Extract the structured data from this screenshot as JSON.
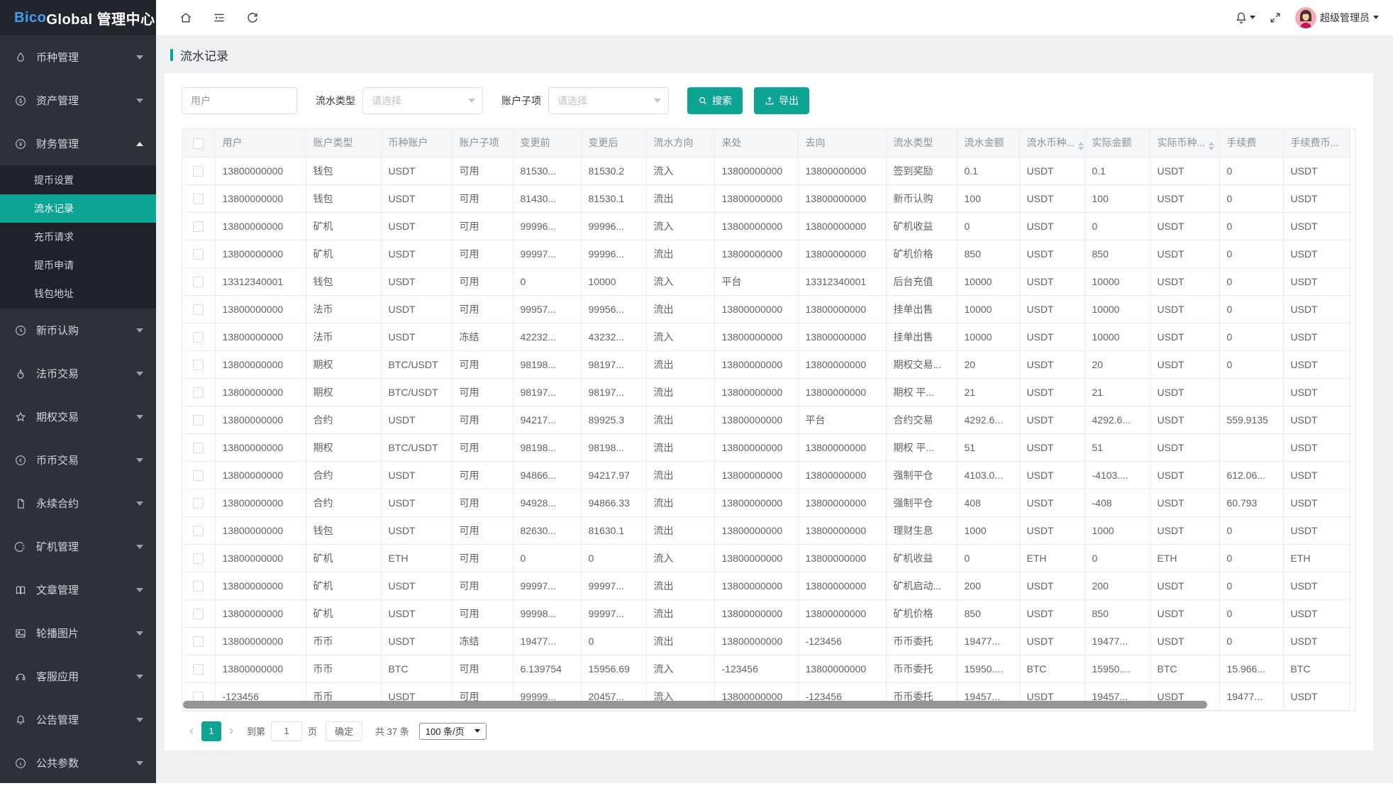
{
  "brand": {
    "highlight": "Bico",
    "rest": " Global 管理中心"
  },
  "topbar": {
    "user": "超级管理员"
  },
  "sidebar": {
    "items": [
      {
        "icon": "droplet",
        "label": "币种管理"
      },
      {
        "icon": "dollar",
        "label": "资产管理"
      },
      {
        "icon": "yen",
        "label": "财务管理",
        "expanded": true,
        "children": [
          {
            "label": "提币设置"
          },
          {
            "label": "流水记录",
            "active": true
          },
          {
            "label": "充币请求"
          },
          {
            "label": "提币申请"
          },
          {
            "label": "钱包地址"
          }
        ]
      },
      {
        "icon": "clock",
        "label": "新币认购"
      },
      {
        "icon": "fire",
        "label": "法币交易"
      },
      {
        "icon": "star",
        "label": "期权交易"
      },
      {
        "icon": "exchange",
        "label": "币币交易"
      },
      {
        "icon": "document",
        "label": "永续合约"
      },
      {
        "icon": "miner",
        "label": "矿机管理"
      },
      {
        "icon": "book",
        "label": "文章管理"
      },
      {
        "icon": "image",
        "label": "轮播图片"
      },
      {
        "icon": "headset",
        "label": "客服应用"
      },
      {
        "icon": "bell",
        "label": "公告管理"
      },
      {
        "icon": "info",
        "label": "公共参数"
      }
    ]
  },
  "page": {
    "title": "流水记录"
  },
  "filters": {
    "user_placeholder": "用户",
    "type_label": "流水类型",
    "type_placeholder": "请选择",
    "sub_label": "账户子项",
    "sub_placeholder": "请选择",
    "search_label": "搜索",
    "export_label": "导出"
  },
  "table": {
    "headers": [
      {
        "label": "用户"
      },
      {
        "label": "账户类型"
      },
      {
        "label": "币种账户"
      },
      {
        "label": "账户子项"
      },
      {
        "label": "变更前"
      },
      {
        "label": "变更后"
      },
      {
        "label": "流水方向"
      },
      {
        "label": "来处"
      },
      {
        "label": "去向"
      },
      {
        "label": "流水类型"
      },
      {
        "label": "流水金额"
      },
      {
        "label": "流水币种...",
        "sortable": true
      },
      {
        "label": "实际金额"
      },
      {
        "label": "实际币种...",
        "sortable": true
      },
      {
        "label": "手续费"
      },
      {
        "label": "手续费币..."
      }
    ],
    "rows": [
      [
        "13800000000",
        "钱包",
        "USDT",
        "可用",
        "81530...",
        "81530.2",
        "流入",
        "13800000000",
        "13800000000",
        "签到奖励",
        "0.1",
        "USDT",
        "0.1",
        "USDT",
        "0",
        "USDT"
      ],
      [
        "13800000000",
        "钱包",
        "USDT",
        "可用",
        "81430...",
        "81530.1",
        "流出",
        "13800000000",
        "13800000000",
        "新币认购",
        "100",
        "USDT",
        "100",
        "USDT",
        "0",
        "USDT"
      ],
      [
        "13800000000",
        "矿机",
        "USDT",
        "可用",
        "99996...",
        "99996...",
        "流入",
        "13800000000",
        "13800000000",
        "矿机收益",
        "0",
        "USDT",
        "0",
        "USDT",
        "0",
        "USDT"
      ],
      [
        "13800000000",
        "矿机",
        "USDT",
        "可用",
        "99997...",
        "99996...",
        "流出",
        "13800000000",
        "13800000000",
        "矿机价格",
        "850",
        "USDT",
        "850",
        "USDT",
        "0",
        "USDT"
      ],
      [
        "13312340001",
        "钱包",
        "USDT",
        "可用",
        "0",
        "10000",
        "流入",
        "平台",
        "13312340001",
        "后台充值",
        "10000",
        "USDT",
        "10000",
        "USDT",
        "0",
        "USDT"
      ],
      [
        "13800000000",
        "法币",
        "USDT",
        "可用",
        "99957...",
        "99956...",
        "流出",
        "13800000000",
        "13800000000",
        "挂单出售",
        "10000",
        "USDT",
        "10000",
        "USDT",
        "0",
        "USDT"
      ],
      [
        "13800000000",
        "法币",
        "USDT",
        "冻结",
        "42232...",
        "43232...",
        "流入",
        "13800000000",
        "13800000000",
        "挂单出售",
        "10000",
        "USDT",
        "10000",
        "USDT",
        "0",
        "USDT"
      ],
      [
        "13800000000",
        "期权",
        "BTC/USDT",
        "可用",
        "98198...",
        "98197...",
        "流出",
        "13800000000",
        "13800000000",
        "期权交易...",
        "20",
        "USDT",
        "20",
        "USDT",
        "0",
        "USDT"
      ],
      [
        "13800000000",
        "期权",
        "BTC/USDT",
        "可用",
        "98197...",
        "98197...",
        "流出",
        "13800000000",
        "13800000000",
        "期权 平...",
        "21",
        "USDT",
        "21",
        "USDT",
        "",
        "USDT"
      ],
      [
        "13800000000",
        "合约",
        "USDT",
        "可用",
        "94217...",
        "89925.3",
        "流出",
        "13800000000",
        "平台",
        "合约交易",
        "4292.6...",
        "USDT",
        "4292.6...",
        "USDT",
        "559.9135",
        "USDT"
      ],
      [
        "13800000000",
        "期权",
        "BTC/USDT",
        "可用",
        "98198...",
        "98198...",
        "流出",
        "13800000000",
        "13800000000",
        "期权 平...",
        "51",
        "USDT",
        "51",
        "USDT",
        "",
        "USDT"
      ],
      [
        "13800000000",
        "合约",
        "USDT",
        "可用",
        "94866...",
        "94217.97",
        "流出",
        "13800000000",
        "13800000000",
        "强制平仓",
        "4103.0...",
        "USDT",
        "-4103....",
        "USDT",
        "612.06...",
        "USDT"
      ],
      [
        "13800000000",
        "合约",
        "USDT",
        "可用",
        "94928...",
        "94866.33",
        "流出",
        "13800000000",
        "13800000000",
        "强制平仓",
        "408",
        "USDT",
        "-408",
        "USDT",
        "60.793",
        "USDT"
      ],
      [
        "13800000000",
        "钱包",
        "USDT",
        "可用",
        "82630...",
        "81630.1",
        "流出",
        "13800000000",
        "13800000000",
        "理财生息",
        "1000",
        "USDT",
        "1000",
        "USDT",
        "0",
        "USDT"
      ],
      [
        "13800000000",
        "矿机",
        "ETH",
        "可用",
        "0",
        "0",
        "流入",
        "13800000000",
        "13800000000",
        "矿机收益",
        "0",
        "ETH",
        "0",
        "ETH",
        "0",
        "ETH"
      ],
      [
        "13800000000",
        "矿机",
        "USDT",
        "可用",
        "99997...",
        "99997...",
        "流出",
        "13800000000",
        "13800000000",
        "矿机启动...",
        "200",
        "USDT",
        "200",
        "USDT",
        "0",
        "USDT"
      ],
      [
        "13800000000",
        "矿机",
        "USDT",
        "可用",
        "99998...",
        "99997...",
        "流出",
        "13800000000",
        "13800000000",
        "矿机价格",
        "850",
        "USDT",
        "850",
        "USDT",
        "0",
        "USDT"
      ],
      [
        "13800000000",
        "币币",
        "USDT",
        "冻结",
        "19477...",
        "0",
        "流出",
        "13800000000",
        "-123456",
        "币币委托",
        "19477...",
        "USDT",
        "19477...",
        "USDT",
        "0",
        "USDT"
      ],
      [
        "13800000000",
        "币币",
        "BTC",
        "可用",
        "6.139754",
        "15956.69",
        "流入",
        "-123456",
        "13800000000",
        "币币委托",
        "15950....",
        "BTC",
        "15950....",
        "BTC",
        "15.966...",
        "BTC"
      ],
      [
        "-123456",
        "币币",
        "USDT",
        "可用",
        "99999...",
        "20457...",
        "流入",
        "13800000000",
        "-123456",
        "币币委托",
        "19457...",
        "USDT",
        "19457...",
        "USDT",
        "19477...",
        "USDT"
      ]
    ]
  },
  "pagination": {
    "prev": "‹",
    "page": "1",
    "next": "›",
    "jump_prefix": "到第",
    "jump_value": "1",
    "jump_suffix": "页",
    "confirm": "确定",
    "total": "共 37 条",
    "page_size": "100 条/页"
  },
  "colors": {
    "accent": "#0da493",
    "sidebar_bg": "#2d3139",
    "submenu_bg": "#1f2228"
  }
}
